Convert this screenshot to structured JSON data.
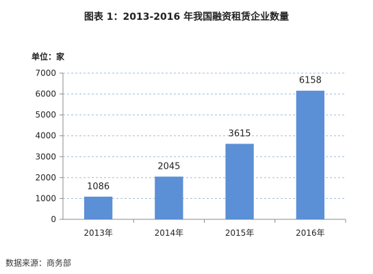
{
  "title": "图表 1：2013-2016 年我国融资租赁企业数量",
  "unit_label": "单位：家",
  "source": "数据来源：商务部",
  "colors": {
    "bar": "#5b8fd6",
    "grid": "#9bbbd8",
    "axis": "#888888"
  },
  "chart_data": {
    "type": "bar",
    "title": "图表 1：2013-2016 年我国融资租赁企业数量",
    "categories": [
      "2013年",
      "2014年",
      "2015年",
      "2016年"
    ],
    "values": [
      1086,
      2045,
      3615,
      6158
    ],
    "ylim": [
      0,
      7000
    ],
    "yticks": [
      0,
      1000,
      2000,
      3000,
      4000,
      5000,
      6000,
      7000
    ],
    "ylabel": "单位：家",
    "xlabel": "",
    "grid": true,
    "legend": "none"
  }
}
